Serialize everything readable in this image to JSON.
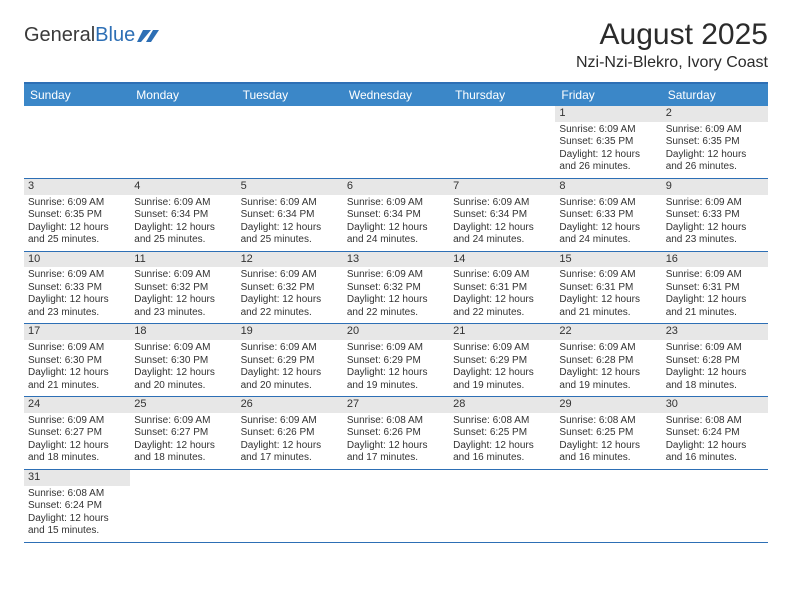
{
  "logo": {
    "word1": "General",
    "word2": "Blue"
  },
  "title": "August 2025",
  "location": "Nzi-Nzi-Blekro, Ivory Coast",
  "colors": {
    "header_bg": "#3b87c8",
    "header_border": "#2d6fb5",
    "daynum_bg": "#e7e7e7",
    "text": "#333333"
  },
  "daysOfWeek": [
    "Sunday",
    "Monday",
    "Tuesday",
    "Wednesday",
    "Thursday",
    "Friday",
    "Saturday"
  ],
  "cells": [
    {
      "day": "",
      "sunrise": "",
      "sunset": "",
      "daylight": ""
    },
    {
      "day": "",
      "sunrise": "",
      "sunset": "",
      "daylight": ""
    },
    {
      "day": "",
      "sunrise": "",
      "sunset": "",
      "daylight": ""
    },
    {
      "day": "",
      "sunrise": "",
      "sunset": "",
      "daylight": ""
    },
    {
      "day": "",
      "sunrise": "",
      "sunset": "",
      "daylight": ""
    },
    {
      "day": "1",
      "sunrise": "Sunrise: 6:09 AM",
      "sunset": "Sunset: 6:35 PM",
      "daylight": "Daylight: 12 hours and 26 minutes."
    },
    {
      "day": "2",
      "sunrise": "Sunrise: 6:09 AM",
      "sunset": "Sunset: 6:35 PM",
      "daylight": "Daylight: 12 hours and 26 minutes."
    },
    {
      "day": "3",
      "sunrise": "Sunrise: 6:09 AM",
      "sunset": "Sunset: 6:35 PM",
      "daylight": "Daylight: 12 hours and 25 minutes."
    },
    {
      "day": "4",
      "sunrise": "Sunrise: 6:09 AM",
      "sunset": "Sunset: 6:34 PM",
      "daylight": "Daylight: 12 hours and 25 minutes."
    },
    {
      "day": "5",
      "sunrise": "Sunrise: 6:09 AM",
      "sunset": "Sunset: 6:34 PM",
      "daylight": "Daylight: 12 hours and 25 minutes."
    },
    {
      "day": "6",
      "sunrise": "Sunrise: 6:09 AM",
      "sunset": "Sunset: 6:34 PM",
      "daylight": "Daylight: 12 hours and 24 minutes."
    },
    {
      "day": "7",
      "sunrise": "Sunrise: 6:09 AM",
      "sunset": "Sunset: 6:34 PM",
      "daylight": "Daylight: 12 hours and 24 minutes."
    },
    {
      "day": "8",
      "sunrise": "Sunrise: 6:09 AM",
      "sunset": "Sunset: 6:33 PM",
      "daylight": "Daylight: 12 hours and 24 minutes."
    },
    {
      "day": "9",
      "sunrise": "Sunrise: 6:09 AM",
      "sunset": "Sunset: 6:33 PM",
      "daylight": "Daylight: 12 hours and 23 minutes."
    },
    {
      "day": "10",
      "sunrise": "Sunrise: 6:09 AM",
      "sunset": "Sunset: 6:33 PM",
      "daylight": "Daylight: 12 hours and 23 minutes."
    },
    {
      "day": "11",
      "sunrise": "Sunrise: 6:09 AM",
      "sunset": "Sunset: 6:32 PM",
      "daylight": "Daylight: 12 hours and 23 minutes."
    },
    {
      "day": "12",
      "sunrise": "Sunrise: 6:09 AM",
      "sunset": "Sunset: 6:32 PM",
      "daylight": "Daylight: 12 hours and 22 minutes."
    },
    {
      "day": "13",
      "sunrise": "Sunrise: 6:09 AM",
      "sunset": "Sunset: 6:32 PM",
      "daylight": "Daylight: 12 hours and 22 minutes."
    },
    {
      "day": "14",
      "sunrise": "Sunrise: 6:09 AM",
      "sunset": "Sunset: 6:31 PM",
      "daylight": "Daylight: 12 hours and 22 minutes."
    },
    {
      "day": "15",
      "sunrise": "Sunrise: 6:09 AM",
      "sunset": "Sunset: 6:31 PM",
      "daylight": "Daylight: 12 hours and 21 minutes."
    },
    {
      "day": "16",
      "sunrise": "Sunrise: 6:09 AM",
      "sunset": "Sunset: 6:31 PM",
      "daylight": "Daylight: 12 hours and 21 minutes."
    },
    {
      "day": "17",
      "sunrise": "Sunrise: 6:09 AM",
      "sunset": "Sunset: 6:30 PM",
      "daylight": "Daylight: 12 hours and 21 minutes."
    },
    {
      "day": "18",
      "sunrise": "Sunrise: 6:09 AM",
      "sunset": "Sunset: 6:30 PM",
      "daylight": "Daylight: 12 hours and 20 minutes."
    },
    {
      "day": "19",
      "sunrise": "Sunrise: 6:09 AM",
      "sunset": "Sunset: 6:29 PM",
      "daylight": "Daylight: 12 hours and 20 minutes."
    },
    {
      "day": "20",
      "sunrise": "Sunrise: 6:09 AM",
      "sunset": "Sunset: 6:29 PM",
      "daylight": "Daylight: 12 hours and 19 minutes."
    },
    {
      "day": "21",
      "sunrise": "Sunrise: 6:09 AM",
      "sunset": "Sunset: 6:29 PM",
      "daylight": "Daylight: 12 hours and 19 minutes."
    },
    {
      "day": "22",
      "sunrise": "Sunrise: 6:09 AM",
      "sunset": "Sunset: 6:28 PM",
      "daylight": "Daylight: 12 hours and 19 minutes."
    },
    {
      "day": "23",
      "sunrise": "Sunrise: 6:09 AM",
      "sunset": "Sunset: 6:28 PM",
      "daylight": "Daylight: 12 hours and 18 minutes."
    },
    {
      "day": "24",
      "sunrise": "Sunrise: 6:09 AM",
      "sunset": "Sunset: 6:27 PM",
      "daylight": "Daylight: 12 hours and 18 minutes."
    },
    {
      "day": "25",
      "sunrise": "Sunrise: 6:09 AM",
      "sunset": "Sunset: 6:27 PM",
      "daylight": "Daylight: 12 hours and 18 minutes."
    },
    {
      "day": "26",
      "sunrise": "Sunrise: 6:09 AM",
      "sunset": "Sunset: 6:26 PM",
      "daylight": "Daylight: 12 hours and 17 minutes."
    },
    {
      "day": "27",
      "sunrise": "Sunrise: 6:08 AM",
      "sunset": "Sunset: 6:26 PM",
      "daylight": "Daylight: 12 hours and 17 minutes."
    },
    {
      "day": "28",
      "sunrise": "Sunrise: 6:08 AM",
      "sunset": "Sunset: 6:25 PM",
      "daylight": "Daylight: 12 hours and 16 minutes."
    },
    {
      "day": "29",
      "sunrise": "Sunrise: 6:08 AM",
      "sunset": "Sunset: 6:25 PM",
      "daylight": "Daylight: 12 hours and 16 minutes."
    },
    {
      "day": "30",
      "sunrise": "Sunrise: 6:08 AM",
      "sunset": "Sunset: 6:24 PM",
      "daylight": "Daylight: 12 hours and 16 minutes."
    },
    {
      "day": "31",
      "sunrise": "Sunrise: 6:08 AM",
      "sunset": "Sunset: 6:24 PM",
      "daylight": "Daylight: 12 hours and 15 minutes."
    },
    {
      "day": "",
      "sunrise": "",
      "sunset": "",
      "daylight": ""
    },
    {
      "day": "",
      "sunrise": "",
      "sunset": "",
      "daylight": ""
    },
    {
      "day": "",
      "sunrise": "",
      "sunset": "",
      "daylight": ""
    },
    {
      "day": "",
      "sunrise": "",
      "sunset": "",
      "daylight": ""
    },
    {
      "day": "",
      "sunrise": "",
      "sunset": "",
      "daylight": ""
    },
    {
      "day": "",
      "sunrise": "",
      "sunset": "",
      "daylight": ""
    }
  ]
}
